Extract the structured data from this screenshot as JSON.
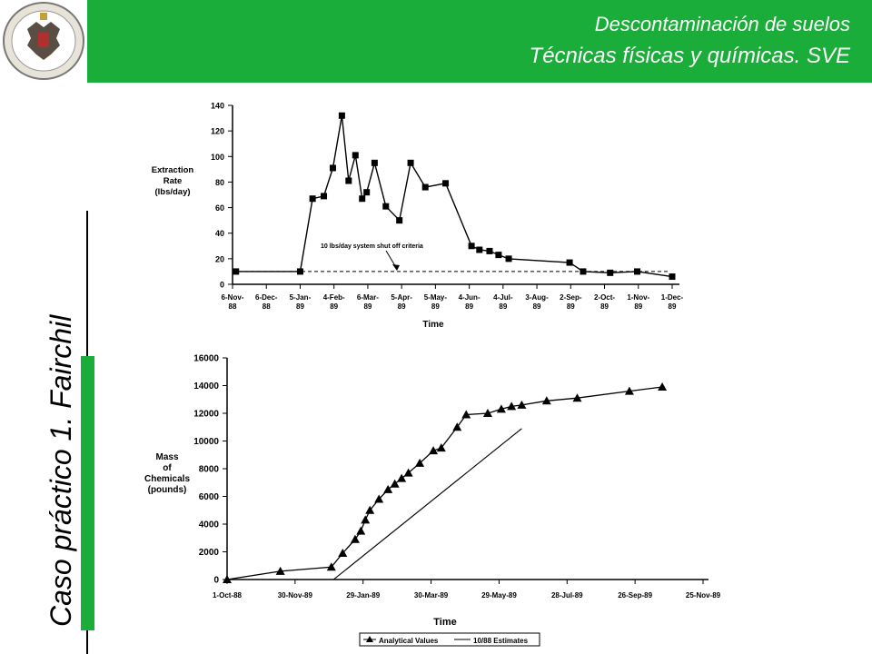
{
  "header": {
    "line1": "Descontaminación de suelos",
    "line2": "Técnicas físicas y químicas.  SVE",
    "band_color": "#1aad3a"
  },
  "sidebar": {
    "title": "Caso práctico 1. Fairchil"
  },
  "chart_data": [
    {
      "type": "line",
      "ylabel": [
        "Extraction",
        "Rate",
        "(lbs/day)"
      ],
      "xlabel": "Time",
      "ylim": [
        0,
        140
      ],
      "y_ticks": [
        "0",
        "20",
        "40",
        "60",
        "80",
        "100",
        "120",
        "140"
      ],
      "x_ticks": [
        {
          "l1": "6-Nov-",
          "l2": "88"
        },
        {
          "l1": "6-Dec-",
          "l2": "88"
        },
        {
          "l1": "5-Jan-",
          "l2": "89"
        },
        {
          "l1": "4-Feb-",
          "l2": "89"
        },
        {
          "l1": "6-Mar-",
          "l2": "89"
        },
        {
          "l1": "5-Apr-",
          "l2": "89"
        },
        {
          "l1": "5-May-",
          "l2": "89"
        },
        {
          "l1": "4-Jun-",
          "l2": "89"
        },
        {
          "l1": "4-Jul-",
          "l2": "89"
        },
        {
          "l1": "3-Aug-",
          "l2": "89"
        },
        {
          "l1": "2-Sep-",
          "l2": "89"
        },
        {
          "l1": "2-Oct-",
          "l2": "89"
        },
        {
          "l1": "1-Nov-",
          "l2": "89"
        },
        {
          "l1": "1-Dec-",
          "l2": "89"
        }
      ],
      "series": [
        {
          "values": [
            [
              "1988-11-09",
              10
            ],
            [
              "1989-01-05",
              10
            ],
            [
              "1989-01-16",
              67
            ],
            [
              "1989-01-26",
              69
            ],
            [
              "1989-02-03",
              91
            ],
            [
              "1989-02-11",
              132
            ],
            [
              "1989-02-17",
              81
            ],
            [
              "1989-02-23",
              101
            ],
            [
              "1989-03-01",
              67
            ],
            [
              "1989-03-05",
              72
            ],
            [
              "1989-03-12",
              95
            ],
            [
              "1989-03-22",
              61
            ],
            [
              "1989-04-03",
              50
            ],
            [
              "1989-04-13",
              95
            ],
            [
              "1989-04-26",
              76
            ],
            [
              "1989-05-14",
              79
            ],
            [
              "1989-06-06",
              30
            ],
            [
              "1989-06-13",
              27
            ],
            [
              "1989-06-22",
              26
            ],
            [
              "1989-06-30",
              23
            ],
            [
              "1989-07-09",
              20
            ],
            [
              "1989-09-01",
              17
            ],
            [
              "1989-09-13",
              10
            ],
            [
              "1989-10-07",
              9
            ],
            [
              "1989-10-31",
              10
            ],
            [
              "1989-12-01",
              6
            ]
          ]
        }
      ],
      "threshold": {
        "value": 10,
        "label": "10 lbs/day system shut off criteria"
      }
    },
    {
      "type": "line",
      "ylabel": [
        "Mass",
        "of",
        "Chemicals",
        "(pounds)"
      ],
      "xlabel": "Time",
      "ylim": [
        0,
        16000
      ],
      "y_ticks": [
        "0",
        "2000",
        "4000",
        "6000",
        "8000",
        "10000",
        "12000",
        "14000",
        "16000"
      ],
      "x_ticks": [
        "1-Oct-88",
        "30-Nov-89",
        "29-Jan-89",
        "30-Mar-89",
        "29-May-89",
        "28-Jul-89",
        "26-Sep-89",
        "25-Nov-89"
      ],
      "legend": {
        "position": "bottom",
        "entries": [
          "Analytical Values",
          "10/88 Estimates"
        ]
      },
      "series": [
        {
          "name": "Analytical Values",
          "values": [
            [
              "1988-10-01",
              0
            ],
            [
              "1988-11-17",
              600
            ],
            [
              "1989-01-01",
              900
            ],
            [
              "1989-01-11",
              1900
            ],
            [
              "1989-01-22",
              2900
            ],
            [
              "1989-01-27",
              3500
            ],
            [
              "1989-01-31",
              4300
            ],
            [
              "1989-02-04",
              5000
            ],
            [
              "1989-02-12",
              5800
            ],
            [
              "1989-02-20",
              6500
            ],
            [
              "1989-02-26",
              6900
            ],
            [
              "1989-03-04",
              7300
            ],
            [
              "1989-03-10",
              7700
            ],
            [
              "1989-03-20",
              8400
            ],
            [
              "1989-04-01",
              9300
            ],
            [
              "1989-04-08",
              9500
            ],
            [
              "1989-04-22",
              11000
            ],
            [
              "1989-04-30",
              11900
            ],
            [
              "1989-05-19",
              12000
            ],
            [
              "1989-05-31",
              12300
            ],
            [
              "1989-06-09",
              12500
            ],
            [
              "1989-06-18",
              12600
            ],
            [
              "1989-07-10",
              12900
            ],
            [
              "1989-08-06",
              13100
            ],
            [
              "1989-09-21",
              13600
            ],
            [
              "1989-10-20",
              13900
            ]
          ]
        },
        {
          "name": "10/88 Estimates",
          "values": [
            [
              "1989-01-03",
              0
            ],
            [
              "1989-06-18",
              10900
            ]
          ]
        }
      ]
    }
  ]
}
